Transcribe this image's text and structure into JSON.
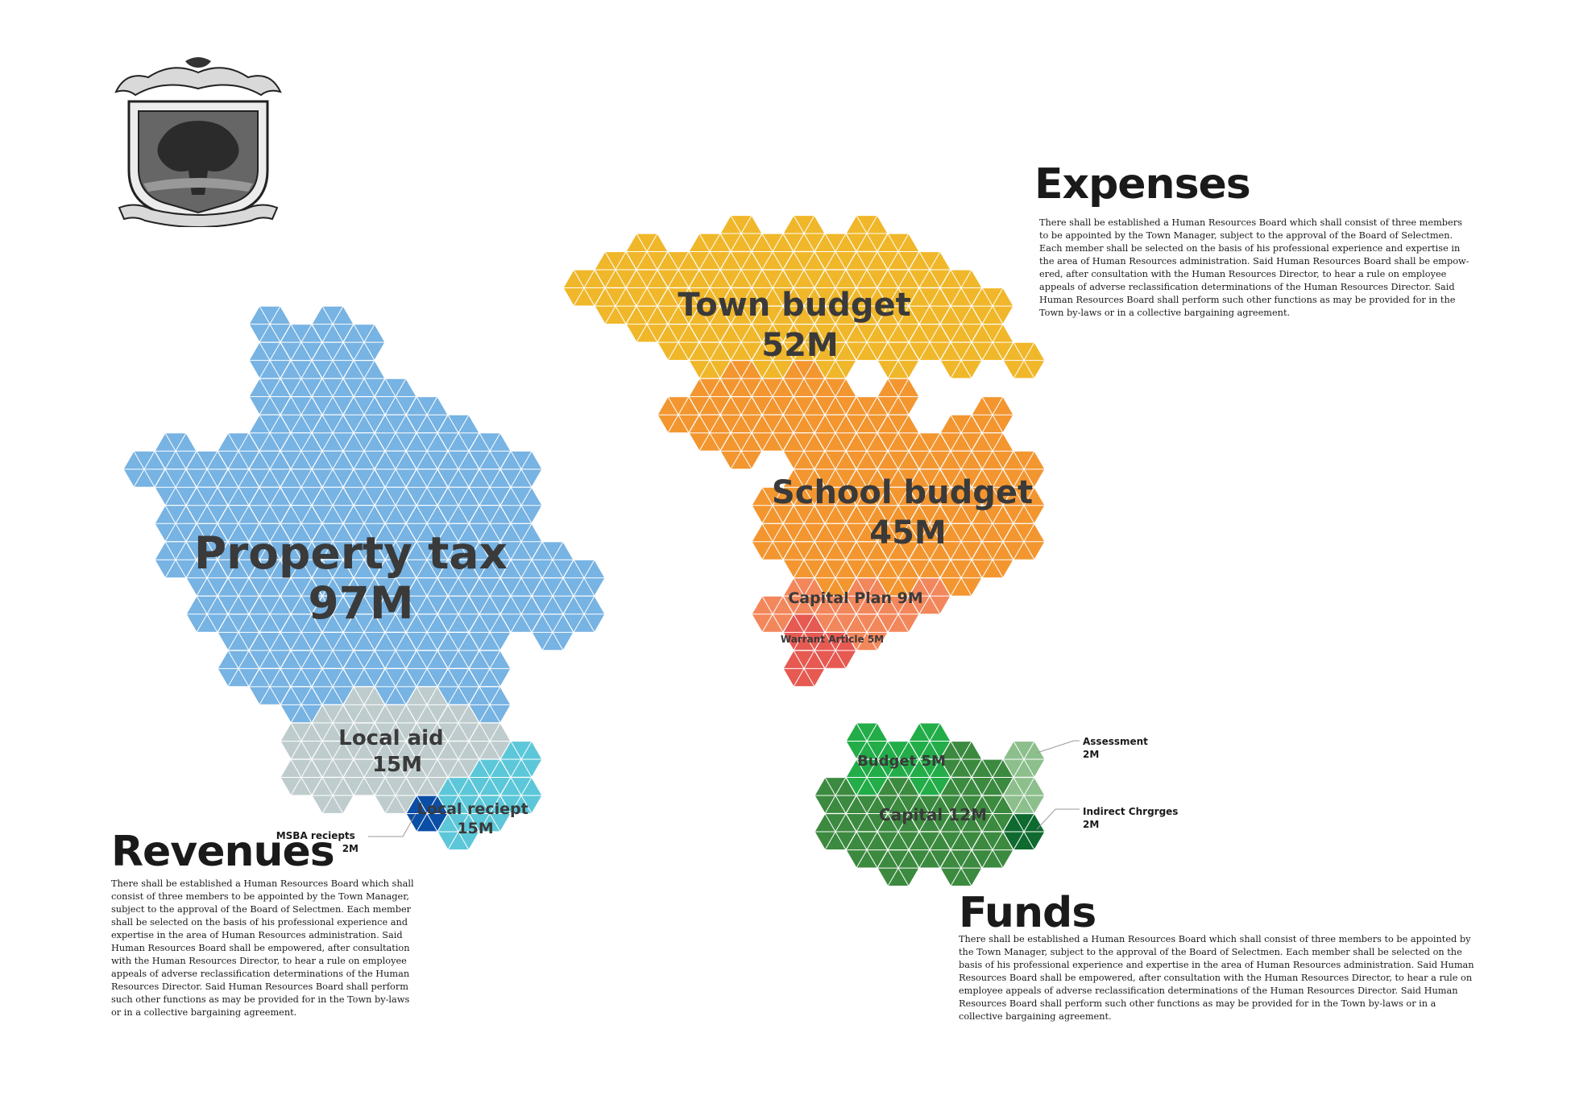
{
  "sections": {
    "revenues": {
      "title": "Revenues",
      "body": "There shall be established a Human Resources Board which shall consist of three members to be appointed by the Town Manager, subject to the approval of the Board of Selectmen. Each member shall be selected on the basis of his professional experience and expertise in the area of Human Resources administration. Said Human Resources Board shall be empowered, after consultation with the Human Resources Director, to hear a rule on employee appeals of adverse reclassification determinations of the Human Resources Director. Said Human Resources Board shall perform such other functions as may be provided for in the Town by-laws or in a collective bargaining agreement."
    },
    "expenses": {
      "title": "Expenses",
      "body": "There shall be established a Human Resources Board which shall consist of three members to be appointed by the Town Manager, subject to the approval of the Board of Selectmen. Each member shall be selected on the basis of his professional experience and expertise in the area of Human Resources administration. Said Human Resources Board shall be empow-ered, after consultation with the Human Resources Director, to hear a rule on employee appeals of adverse reclassification determinations of the Human Resources Director. Said Human Resources Board shall perform such other functions as may be provided for in the Town by-laws or in a collective bargaining agreement."
    },
    "funds": {
      "title": "Funds",
      "body": "There shall be established a Human Resources Board which shall consist of three members to be appointed by the Town Manager, subject to the approval of the Board of Selectmen. Each member shall be selected on the basis of his professional experience and expertise in the area of Human Resources administration. Said Human Resources Board shall be empowered, after consultation with the Human Resources Director, to hear a rule on employee appeals of adverse reclassification determinations of the Human Resources Director. Said Human Resources Board shall perform such other functions as may be provided for in the Town by-laws or in a collective bargaining agreement."
    }
  },
  "seal": {
    "motto_top": "",
    "motto_bottom": "",
    "icon": "town-seal-logo"
  },
  "groups": [
    {
      "id": "revenues",
      "items": [
        {
          "name": "Property tax",
          "value": "97M",
          "color": "#77b3e3"
        },
        {
          "name": "Local aid",
          "value": "15M",
          "color": "#bfcccd"
        },
        {
          "name": "Local reciept",
          "value": "15M",
          "color": "#5cc7d8"
        },
        {
          "name": "MSBA reciepts",
          "value": "2M",
          "color": "#0b4ea6"
        }
      ]
    },
    {
      "id": "expenses",
      "items": [
        {
          "name": "Town budget",
          "value": "52M",
          "color": "#f0b72a"
        },
        {
          "name": "School budget",
          "value": "45M",
          "color": "#f39630"
        },
        {
          "name": "Capital Plan",
          "value": "9M",
          "color": "#f3875c"
        },
        {
          "name": "Warrant Article",
          "value": "5M",
          "color": "#e65a52"
        }
      ]
    },
    {
      "id": "funds",
      "items": [
        {
          "name": "Budget",
          "value": "5M",
          "color": "#22ad48"
        },
        {
          "name": "Capital",
          "value": "12M",
          "color": "#3c8a3f"
        },
        {
          "name": "Assessment",
          "value": "2M",
          "color": "#8cbf8c"
        },
        {
          "name": "Indirect Chrgrges",
          "value": "2M",
          "color": "#0e6a2e"
        }
      ]
    }
  ],
  "labels": {
    "property_tax": {
      "name": "Property tax",
      "value": "97M"
    },
    "local_aid": {
      "name": "Local aid",
      "value": "15M"
    },
    "local_reciept": {
      "name": "Local reciept",
      "value": "15M"
    },
    "msba": {
      "name": "MSBA reciepts",
      "value": "2M"
    },
    "town_budget": {
      "name": "Town budget",
      "value": "52M"
    },
    "school_budget": {
      "name": "School budget",
      "value": "45M"
    },
    "capital_plan": "Capital Plan 9M",
    "warrant_article": "Warrant Article 5M",
    "budget": "Budget 5M",
    "capital": "Capital 12M",
    "assessment": {
      "name": "Assessment",
      "value": "2M"
    },
    "indirect": {
      "name": "Indirect Chrgrges",
      "value": "2M"
    }
  }
}
